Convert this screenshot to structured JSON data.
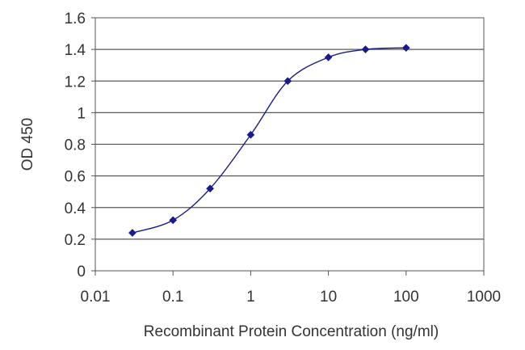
{
  "chart_data": {
    "type": "line",
    "title": "",
    "xlabel": "Recombinant Protein Concentration (ng/ml)",
    "ylabel": "OD 450",
    "x_scale": "log",
    "xlim": [
      0.01,
      1000
    ],
    "ylim": [
      0,
      1.6
    ],
    "x_ticks": [
      "0.01",
      "0.1",
      "1",
      "10",
      "100",
      "1000"
    ],
    "y_ticks": [
      "0",
      "0.2",
      "0.4",
      "0.6",
      "0.8",
      "1",
      "1.2",
      "1.4",
      "1.6"
    ],
    "grid": "horizontal",
    "legend": "none",
    "series": [
      {
        "color": "#1a1a8c",
        "x": [
          0.03,
          0.1,
          0.3,
          1,
          3,
          10,
          30,
          100
        ],
        "y": [
          0.24,
          0.32,
          0.52,
          0.86,
          1.2,
          1.35,
          1.4,
          1.41
        ]
      }
    ]
  }
}
